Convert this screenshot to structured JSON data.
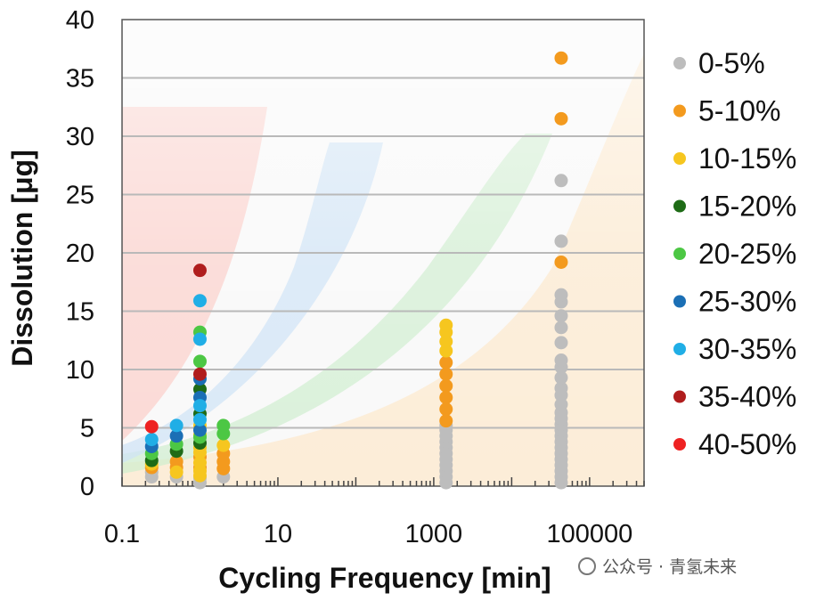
{
  "chart_data": {
    "type": "scatter",
    "title": "",
    "xlabel": "Cycling Frequency [min]",
    "ylabel": "Dissolution [μg]",
    "xscale": "log",
    "xlim": [
      0.1,
      500000
    ],
    "ylim": [
      0,
      40
    ],
    "x_ticks": [
      {
        "value": 0.1,
        "label": "0.1"
      },
      {
        "value": 10,
        "label": "10"
      },
      {
        "value": 1000,
        "label": "1000"
      },
      {
        "value": 100000,
        "label": "100000"
      }
    ],
    "y_ticks": [
      {
        "value": 0,
        "label": "0"
      },
      {
        "value": 5,
        "label": "5"
      },
      {
        "value": 10,
        "label": "10"
      },
      {
        "value": 15,
        "label": "15"
      },
      {
        "value": 20,
        "label": "20"
      },
      {
        "value": 25,
        "label": "25"
      },
      {
        "value": 30,
        "label": "30"
      },
      {
        "value": 35,
        "label": "35"
      },
      {
        "value": 40,
        "label": "40"
      }
    ],
    "grid": "horizontal",
    "legend_position": "right",
    "series": [
      {
        "name": "0-5%",
        "color": "#bdbdbd",
        "points": [
          [
            1440,
            0.3
          ],
          [
            1440,
            0.8
          ],
          [
            1440,
            1.3
          ],
          [
            1440,
            1.8
          ],
          [
            1440,
            2.3
          ],
          [
            1440,
            2.8
          ],
          [
            1440,
            3.3
          ],
          [
            1440,
            3.8
          ],
          [
            1440,
            4.3
          ],
          [
            1440,
            4.8
          ],
          [
            1440,
            5.2
          ],
          [
            1.0,
            0.3
          ],
          [
            1.0,
            0.7
          ],
          [
            0.24,
            0.8
          ],
          [
            0.5,
            0.8
          ],
          [
            2.0,
            0.8
          ],
          [
            0.24,
            1.2
          ],
          [
            43200,
            0.3
          ],
          [
            43200,
            0.8
          ],
          [
            43200,
            1.3
          ],
          [
            43200,
            1.8
          ],
          [
            43200,
            2.3
          ],
          [
            43200,
            2.8
          ],
          [
            43200,
            3.3
          ],
          [
            43200,
            3.8
          ],
          [
            43200,
            4.3
          ],
          [
            43200,
            4.8
          ],
          [
            43200,
            5.3
          ],
          [
            43200,
            5.8
          ],
          [
            43200,
            6.3
          ],
          [
            43200,
            7.0
          ],
          [
            43200,
            7.8
          ],
          [
            43200,
            8.4
          ],
          [
            43200,
            9.3
          ],
          [
            43200,
            10.2
          ],
          [
            43200,
            10.8
          ],
          [
            43200,
            12.3
          ],
          [
            43200,
            13.6
          ],
          [
            43200,
            14.6
          ],
          [
            43200,
            15.8
          ],
          [
            43200,
            16.4
          ],
          [
            43200,
            21.0
          ],
          [
            43200,
            26.2
          ]
        ]
      },
      {
        "name": "5-10%",
        "color": "#f39a1e",
        "points": [
          [
            43200,
            36.7
          ],
          [
            43200,
            31.5
          ],
          [
            43200,
            19.2
          ],
          [
            1440,
            5.6
          ],
          [
            1440,
            6.6
          ],
          [
            1440,
            7.6
          ],
          [
            1440,
            8.6
          ],
          [
            1440,
            9.6
          ],
          [
            1440,
            10.6
          ],
          [
            0.24,
            1.6
          ],
          [
            0.5,
            1.6
          ],
          [
            0.5,
            2.1
          ],
          [
            2.0,
            1.5
          ],
          [
            2.0,
            2.1
          ],
          [
            2.0,
            2.8
          ],
          [
            1.0,
            1.6
          ],
          [
            1.0,
            2.5
          ]
        ]
      },
      {
        "name": "10-15%",
        "color": "#f6c61f",
        "points": [
          [
            1440,
            11.6
          ],
          [
            1440,
            12.4
          ],
          [
            1440,
            13.2
          ],
          [
            1440,
            13.8
          ],
          [
            0.24,
            1.9
          ],
          [
            0.5,
            1.2
          ],
          [
            1.0,
            0.9
          ],
          [
            1.0,
            1.3
          ],
          [
            1.0,
            2.0
          ],
          [
            1.0,
            2.9
          ],
          [
            1.0,
            3.3
          ],
          [
            1.0,
            4.4
          ],
          [
            1.0,
            5.2
          ],
          [
            2.0,
            3.5
          ]
        ]
      },
      {
        "name": "15-20%",
        "color": "#1e6b16",
        "points": [
          [
            0.24,
            2.2
          ],
          [
            0.5,
            3.0
          ],
          [
            1.0,
            3.7
          ],
          [
            1.0,
            6.2
          ],
          [
            1.0,
            8.3
          ]
        ]
      },
      {
        "name": "20-25%",
        "color": "#4cc744",
        "points": [
          [
            0.24,
            2.8
          ],
          [
            0.5,
            3.6
          ],
          [
            1.0,
            4.2
          ],
          [
            1.0,
            10.7
          ],
          [
            1.0,
            13.2
          ],
          [
            2.0,
            5.2
          ],
          [
            2.0,
            4.5
          ]
        ]
      },
      {
        "name": "25-30%",
        "color": "#1b6fb5",
        "points": [
          [
            0.24,
            3.4
          ],
          [
            0.5,
            4.3
          ],
          [
            1.0,
            4.8
          ],
          [
            1.0,
            7.6
          ],
          [
            1.0,
            9.2
          ]
        ]
      },
      {
        "name": "30-35%",
        "color": "#20aee6",
        "points": [
          [
            0.24,
            4.0
          ],
          [
            0.5,
            5.2
          ],
          [
            1.0,
            5.7
          ],
          [
            1.0,
            6.9
          ],
          [
            1.0,
            12.6
          ],
          [
            1.0,
            15.9
          ]
        ]
      },
      {
        "name": "35-40%",
        "color": "#b01d1d",
        "points": [
          [
            1.0,
            9.6
          ],
          [
            1.0,
            18.5
          ]
        ]
      },
      {
        "name": "40-50%",
        "color": "#ee2222",
        "points": [
          [
            0.24,
            5.1
          ]
        ]
      }
    ]
  },
  "watermark": "公众号 · 青氢未来"
}
